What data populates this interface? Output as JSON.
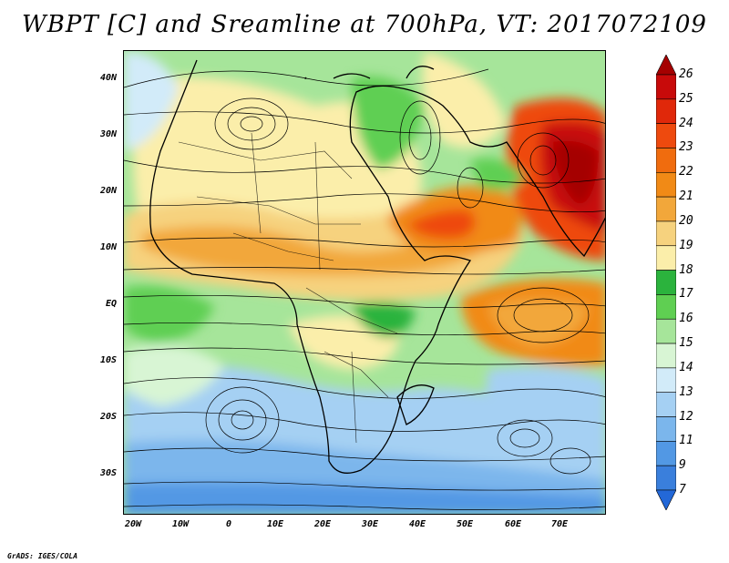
{
  "title": "WBPT [C] and Sreamline at 700hPa, VT: 2017072109",
  "footer": "GrADS: IGES/COLA",
  "lat_labels": [
    "40N",
    "30N",
    "20N",
    "10N",
    "EQ",
    "10S",
    "20S",
    "30S"
  ],
  "lon_labels": [
    "20W",
    "10W",
    "0",
    "10E",
    "20E",
    "30E",
    "40E",
    "50E",
    "60E",
    "70E"
  ],
  "colorbar": {
    "levels": [
      "26",
      "25",
      "24",
      "23",
      "22",
      "21",
      "20",
      "19",
      "18",
      "17",
      "16",
      "15",
      "14",
      "13",
      "12",
      "11",
      "9",
      "7"
    ],
    "colors": [
      "#a50000",
      "#c80a0a",
      "#e0280a",
      "#ee4a0e",
      "#f06c0e",
      "#f18a16",
      "#f2a73a",
      "#f6d27e",
      "#fbeeaa",
      "#2bb33d",
      "#5fcf52",
      "#a6e59a",
      "#d8f5d4",
      "#d2ebf9",
      "#a5d0f3",
      "#7bb6ec",
      "#5298e4",
      "#3a7fdc",
      "#2368d8"
    ]
  }
}
